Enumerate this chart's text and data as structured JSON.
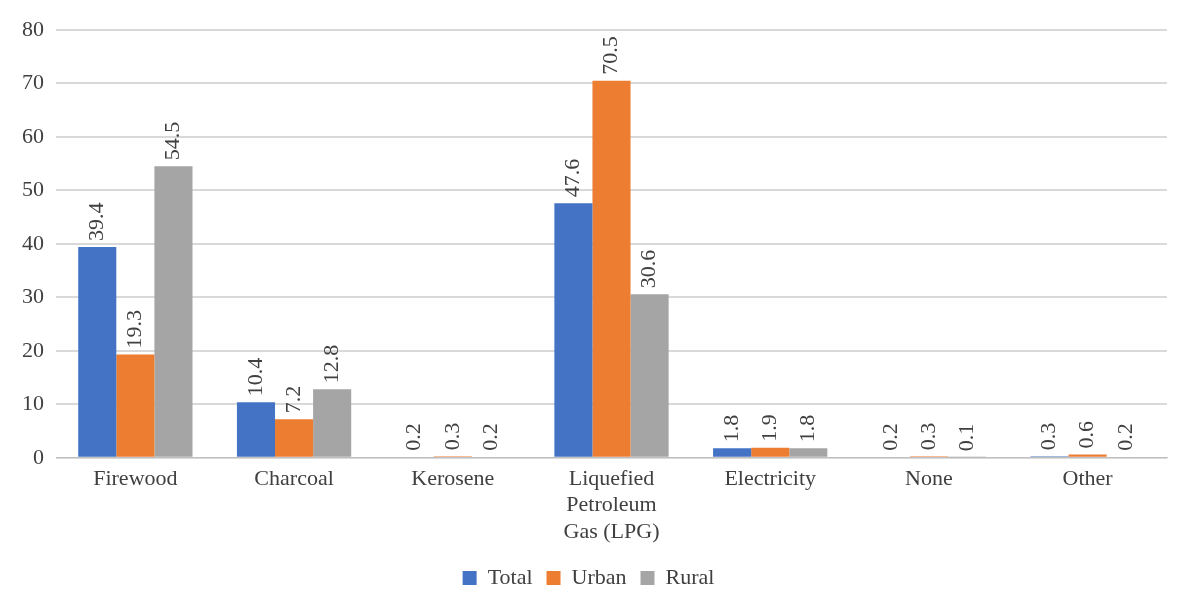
{
  "chart_data": {
    "type": "bar",
    "categories": [
      "Firewood",
      "Charcoal",
      "Kerosene",
      "Liquefied Petroleum Gas (LPG)",
      "Electricity",
      "None",
      "Other"
    ],
    "series": [
      {
        "name": "Total",
        "color": "#4472c4",
        "values": [
          39.4,
          10.4,
          0.2,
          47.6,
          1.8,
          0.2,
          0.3
        ]
      },
      {
        "name": "Urban",
        "color": "#ed7d31",
        "values": [
          19.3,
          7.2,
          0.3,
          70.5,
          1.9,
          0.3,
          0.6
        ]
      },
      {
        "name": "Rural",
        "color": "#a5a5a5",
        "values": [
          54.5,
          12.8,
          0.2,
          30.6,
          1.8,
          0.1,
          0.2
        ]
      }
    ],
    "ylim": [
      0,
      80
    ],
    "yticks": [
      0,
      10,
      20,
      30,
      40,
      50,
      60,
      70,
      80
    ],
    "grid": "y",
    "legend": "bottom",
    "data_labels": true
  }
}
